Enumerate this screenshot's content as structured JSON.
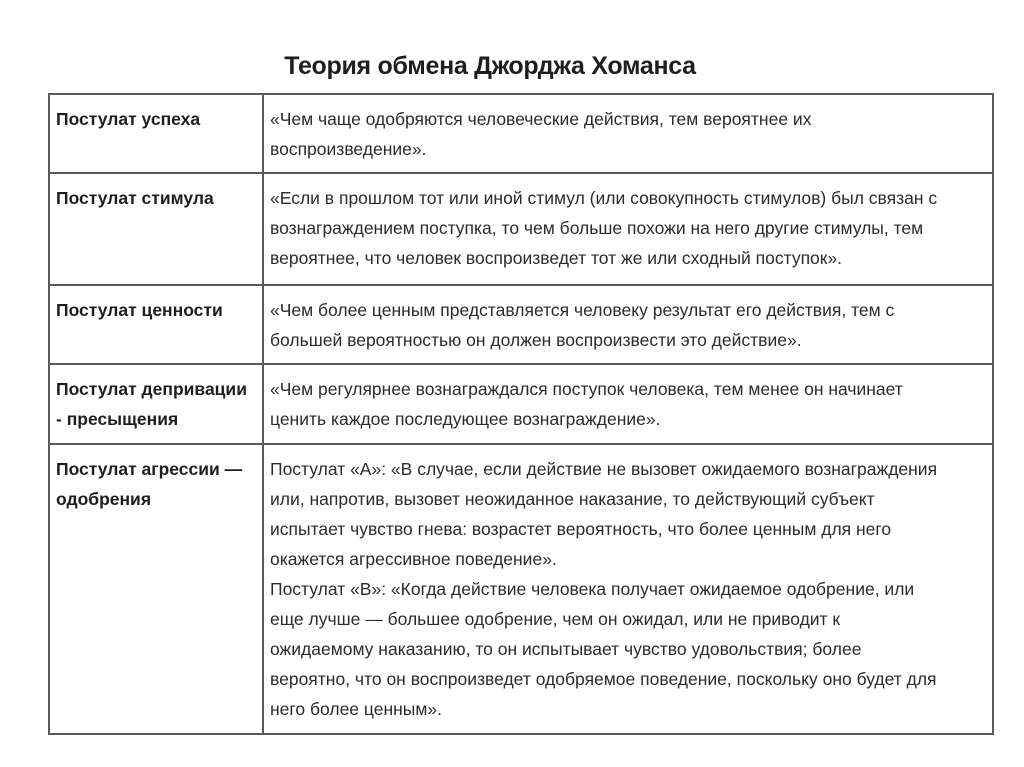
{
  "title": "Теория обмена Джорджа Хоманса",
  "rows": [
    {
      "postulate": [
        "Постулат успеха"
      ],
      "text": [
        " «Чем чаще одобряются человеческие действия, тем вероятнее их",
        "воспроизведение»."
      ]
    },
    {
      "postulate": [
        "Постулат стимула"
      ],
      "text": [
        "«Если в прошлом тот или иной стимул (или совокупность стимулов) был связан с",
        "вознаграждением поступка, то чем больше похожи на него другие стимулы, тем",
        "вероятнее, что человек воспроизведет тот же или сходный поступок»."
      ]
    },
    {
      "postulate": [
        "Постулат ценности"
      ],
      "text": [
        "«Чем более ценным представляется человеку результат его действия, тем с",
        "большей вероятностью он должен воспроизвести это действие»."
      ]
    },
    {
      "postulate": [
        "Постулат депривации",
        " -  пресыщения"
      ],
      "text": [
        "«Чем регулярнее вознаграждался поступок человека, тем менее он начинает",
        "ценить каждое последующее вознаграждение»."
      ]
    },
    {
      "postulate": [
        "Постулат агрессии —",
        "одобрения"
      ],
      "text": [
        "Постулат «А»: «В случае, если действие не вызовет ожидаемого вознаграждения",
        "или, напротив, вызовет неожиданное наказание, то действующий субъект",
        "испытает чувство гнева: возрастет вероятность, что более ценным для него",
        "окажется агрессивное поведение».",
        "Постулат «В»: «Когда действие человека получает ожидаемое одобрение, или",
        "еще лучше — большее одобрение, чем он ожидал, или не приводит к",
        "ожидаемому наказанию, то он испытывает чувство удовольствия; более",
        "вероятно, что он воспроизведет одобряемое поведение, поскольку оно будет для",
        "него более ценным»."
      ]
    }
  ]
}
